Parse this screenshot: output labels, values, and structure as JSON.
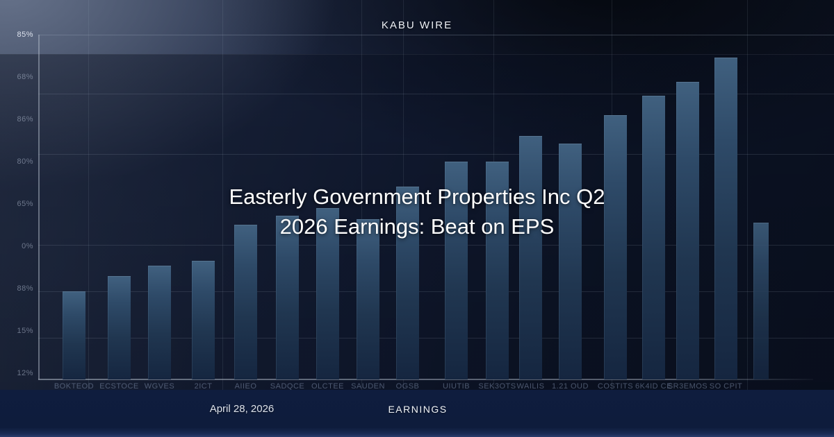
{
  "brand": {
    "name": "KABU WIRE"
  },
  "title": {
    "line1": "Easterly Government Properties Inc Q2",
    "line2": "2026 Earnings: Beat on EPS"
  },
  "footer": {
    "date": "April 28, 2026",
    "category": "EARNINGS"
  },
  "colors": {
    "background_dark": "#0b1120",
    "background_light_corner": "#46536e",
    "bar_top": "#40607f",
    "bar_bottom": "#152640",
    "footer_band": "#0f1d3e",
    "title_text": "#ffffff",
    "axis_line": "#aab4c4"
  },
  "chart_data": {
    "type": "bar",
    "title": "",
    "xlabel": "",
    "ylabel": "",
    "ylim": [
      0,
      100
    ],
    "grid": true,
    "legend": "none",
    "y_ticks": [
      "85%",
      "68%",
      "86%",
      "80%",
      "65%",
      "0%",
      "88%",
      "15%",
      "12%"
    ],
    "categories": [
      "BOKTEOD",
      "ECSTOCE",
      "WGVES",
      "2ICT",
      "AIIEO",
      "SADQCE",
      "OLCTEE",
      "SAUDEN",
      "OGSB",
      "UIUTIB",
      "SEK3OTS",
      "WAILIS",
      "1.21 OUD",
      "COSTITS",
      "6K4ID CE",
      "SR3EMOS",
      "SO CPIT",
      ""
    ],
    "values": [
      25.6,
      30.0,
      33.0,
      34.4,
      44.9,
      47.5,
      49.7,
      46.5,
      55.9,
      63.2,
      63.2,
      70.6,
      68.4,
      76.7,
      82.3,
      86.3,
      93.4,
      45.5
    ]
  }
}
